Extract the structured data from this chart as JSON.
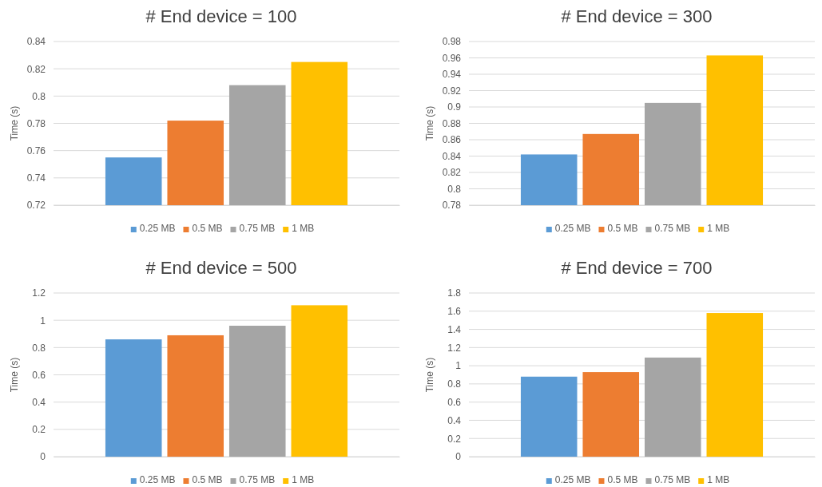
{
  "chart_data": [
    {
      "type": "bar",
      "title": "# End device = 100",
      "ylabel": "Time (s)",
      "categories": [
        null
      ],
      "ylim": [
        0.72,
        0.84
      ],
      "yticks": [
        0.72,
        0.74,
        0.76,
        0.78,
        0.8,
        0.82,
        0.84
      ],
      "grid": "y",
      "legend": "bottom",
      "series": [
        {
          "name": "0.25 MB",
          "color": "#5b9bd5",
          "values": [
            0.755
          ]
        },
        {
          "name": "0.5 MB",
          "color": "#ed7d31",
          "values": [
            0.782
          ]
        },
        {
          "name": "0.75 MB",
          "color": "#a5a5a5",
          "values": [
            0.808
          ]
        },
        {
          "name": "1 MB",
          "color": "#ffc000",
          "values": [
            0.825
          ]
        }
      ]
    },
    {
      "type": "bar",
      "title": "# End device = 300",
      "ylabel": "Time (s)",
      "categories": [
        null
      ],
      "ylim": [
        0.78,
        0.98
      ],
      "yticks": [
        0.78,
        0.8,
        0.82,
        0.84,
        0.86,
        0.88,
        0.9,
        0.92,
        0.94,
        0.96,
        0.98
      ],
      "grid": "y",
      "legend": "bottom",
      "series": [
        {
          "name": "0.25 MB",
          "color": "#5b9bd5",
          "values": [
            0.842
          ]
        },
        {
          "name": "0.5 MB",
          "color": "#ed7d31",
          "values": [
            0.867
          ]
        },
        {
          "name": "0.75 MB",
          "color": "#a5a5a5",
          "values": [
            0.905
          ]
        },
        {
          "name": "1 MB",
          "color": "#ffc000",
          "values": [
            0.963
          ]
        }
      ]
    },
    {
      "type": "bar",
      "title": "# End device = 500",
      "ylabel": "Time (s)",
      "categories": [
        null
      ],
      "ylim": [
        0,
        1.2
      ],
      "yticks": [
        0,
        0.2,
        0.4,
        0.6,
        0.8,
        1,
        1.2
      ],
      "grid": "y",
      "legend": "bottom",
      "series": [
        {
          "name": "0.25 MB",
          "color": "#5b9bd5",
          "values": [
            0.86
          ]
        },
        {
          "name": "0.5 MB",
          "color": "#ed7d31",
          "values": [
            0.89
          ]
        },
        {
          "name": "0.75 MB",
          "color": "#a5a5a5",
          "values": [
            0.96
          ]
        },
        {
          "name": "1 MB",
          "color": "#ffc000",
          "values": [
            1.11
          ]
        }
      ]
    },
    {
      "type": "bar",
      "title": "# End device = 700",
      "ylabel": "Time (s)",
      "categories": [
        null
      ],
      "ylim": [
        0,
        1.8
      ],
      "yticks": [
        0,
        0.2,
        0.4,
        0.6,
        0.8,
        1,
        1.2,
        1.4,
        1.6,
        1.8
      ],
      "grid": "y",
      "legend": "bottom",
      "series": [
        {
          "name": "0.25 MB",
          "color": "#5b9bd5",
          "values": [
            0.88
          ]
        },
        {
          "name": "0.5 MB",
          "color": "#ed7d31",
          "values": [
            0.93
          ]
        },
        {
          "name": "0.75 MB",
          "color": "#a5a5a5",
          "values": [
            1.09
          ]
        },
        {
          "name": "1 MB",
          "color": "#ffc000",
          "values": [
            1.58
          ]
        }
      ]
    }
  ]
}
